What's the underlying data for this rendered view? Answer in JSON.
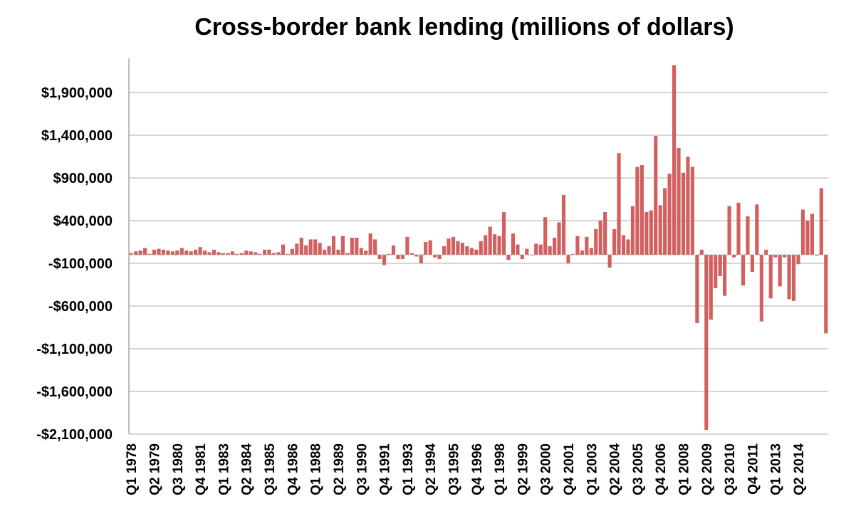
{
  "chart_data": {
    "type": "bar",
    "title": "Cross-border bank lending (millions of dollars)",
    "xlabel": "",
    "ylabel": "",
    "ylim": [
      -2100000,
      2300000
    ],
    "yticks": [
      1900000,
      1400000,
      900000,
      400000,
      -100000,
      -600000,
      -1100000,
      -1600000,
      -2100000
    ],
    "ytick_labels": [
      "$1,900,000",
      "$1,400,000",
      "$900,000",
      "$400,000",
      "-$100,000",
      "-$600,000",
      "-$1,100,000",
      "-$1,600,000",
      "-$2,100,000"
    ],
    "xtick_labels": [
      "Q1 1978",
      "Q2 1979",
      "Q3 1980",
      "Q4 1981",
      "Q1 1983",
      "Q2 1984",
      "Q3 1985",
      "Q4 1986",
      "Q1 1988",
      "Q2 1989",
      "Q3 1990",
      "Q4 1991",
      "Q1 1993",
      "Q2 1994",
      "Q3 1995",
      "Q4 1996",
      "Q1 1998",
      "Q2 1999",
      "Q3 2000",
      "Q4 2001",
      "Q1 2003",
      "Q2 2004",
      "Q3 2005",
      "Q4 2006",
      "Q1 2008",
      "Q2 2009",
      "Q3 2010",
      "Q4 2011",
      "Q1 2013",
      "Q2 2014"
    ],
    "x_start": "Q1 1978",
    "x_end": "Q1 2015",
    "values": [
      20000,
      40000,
      50000,
      80000,
      10000,
      60000,
      70000,
      60000,
      50000,
      40000,
      50000,
      80000,
      50000,
      40000,
      60000,
      90000,
      50000,
      30000,
      60000,
      30000,
      20000,
      20000,
      40000,
      10000,
      20000,
      50000,
      40000,
      30000,
      10000,
      60000,
      60000,
      20000,
      30000,
      120000,
      10000,
      70000,
      130000,
      200000,
      110000,
      180000,
      180000,
      140000,
      60000,
      100000,
      220000,
      60000,
      220000,
      20000,
      200000,
      200000,
      80000,
      50000,
      250000,
      180000,
      -50000,
      -120000,
      10000,
      110000,
      -50000,
      -50000,
      210000,
      20000,
      -20000,
      -100000,
      150000,
      170000,
      -30000,
      -50000,
      100000,
      190000,
      210000,
      160000,
      140000,
      100000,
      80000,
      60000,
      160000,
      230000,
      330000,
      240000,
      220000,
      500000,
      -60000,
      250000,
      120000,
      -50000,
      70000,
      0,
      130000,
      120000,
      440000,
      100000,
      200000,
      380000,
      700000,
      -100000,
      10000,
      220000,
      50000,
      210000,
      80000,
      300000,
      400000,
      500000,
      -150000,
      300000,
      1190000,
      230000,
      180000,
      570000,
      1030000,
      1050000,
      500000,
      520000,
      1390000,
      580000,
      780000,
      950000,
      2220000,
      1250000,
      960000,
      1150000,
      1030000,
      -800000,
      60000,
      -2050000,
      -760000,
      -390000,
      -250000,
      -480000,
      570000,
      -30000,
      610000,
      -360000,
      450000,
      -200000,
      590000,
      -780000,
      60000,
      -510000,
      -30000,
      -370000,
      -30000,
      -520000,
      -540000,
      -110000,
      530000,
      400000,
      480000,
      -10000,
      780000,
      -920000
    ]
  }
}
